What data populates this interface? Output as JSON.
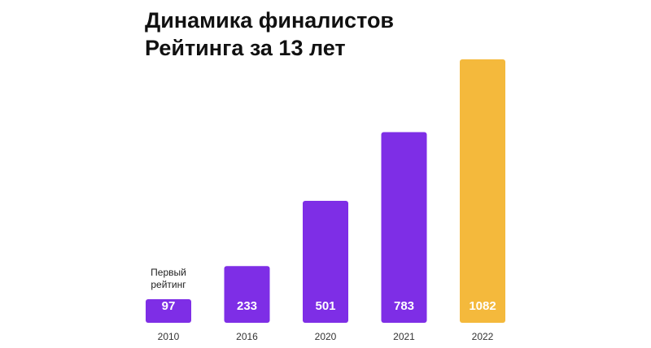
{
  "chart_data": {
    "type": "bar",
    "title_lines": [
      "Динамика финалистов",
      "Рейтинга за 13 лет"
    ],
    "xlabel": "",
    "ylabel": "",
    "categories": [
      "2010",
      "2016",
      "2020",
      "2021",
      "2022"
    ],
    "values": [
      97,
      233,
      501,
      783,
      1082
    ],
    "bar_colors": [
      "#7e2ee6",
      "#7e2ee6",
      "#7e2ee6",
      "#7e2ee6",
      "#f4b93c"
    ],
    "ylim": [
      0,
      1082
    ],
    "grid": false,
    "legend": "none",
    "annotation": {
      "category": "2010",
      "lines": [
        "Первый",
        "рейтинг"
      ]
    }
  }
}
